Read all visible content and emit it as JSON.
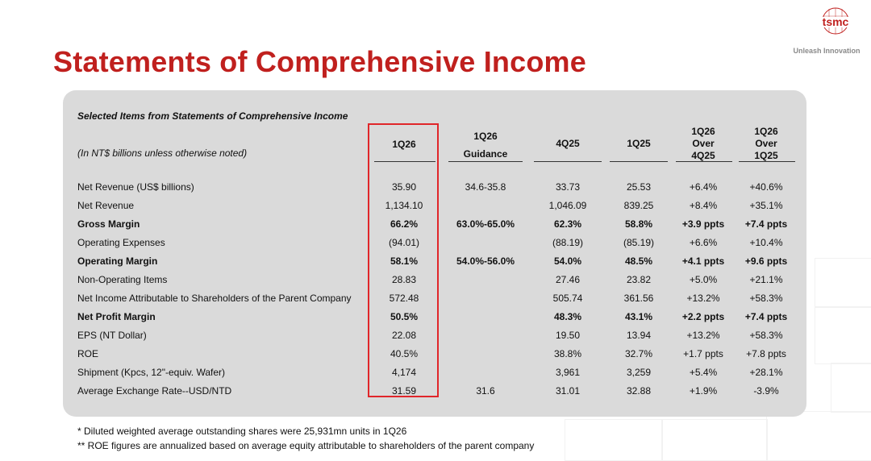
{
  "slide": {
    "title": "Statements of Comprehensive Income",
    "brand": {
      "logo_text": "tsmc",
      "tagline": "Unleash Innovation",
      "accent": "#c0201e"
    }
  },
  "table": {
    "caption": "Selected Items from Statements of Comprehensive Income",
    "unit_note": "(In NT$ billions unless otherwise noted)",
    "columns": [
      {
        "line1": "",
        "line2": "1Q26",
        "line3": ""
      },
      {
        "line1": "1Q26",
        "line2": "",
        "line3": "Guidance"
      },
      {
        "line1": "",
        "line2": "4Q25",
        "line3": ""
      },
      {
        "line1": "",
        "line2": "1Q25",
        "line3": ""
      },
      {
        "line1": "1Q26",
        "line2": "Over",
        "line3": "4Q25"
      },
      {
        "line1": "1Q26",
        "line2": "Over",
        "line3": "1Q25"
      }
    ],
    "highlight_color": "#e0262a",
    "rows": [
      {
        "label": "Net Revenue (US$ billions)",
        "bold": false,
        "values": [
          "35.90",
          "34.6-35.8",
          "33.73",
          "25.53",
          "+6.4%",
          "+40.6%"
        ]
      },
      {
        "label": "Net Revenue",
        "bold": false,
        "values": [
          "1,134.10",
          "",
          "1,046.09",
          "839.25",
          "+8.4%",
          "+35.1%"
        ]
      },
      {
        "label": "Gross Margin",
        "bold": true,
        "values": [
          "66.2%",
          "63.0%-65.0%",
          "62.3%",
          "58.8%",
          "+3.9 ppts",
          "+7.4 ppts"
        ]
      },
      {
        "label": "Operating Expenses",
        "bold": false,
        "values": [
          "(94.01)",
          "",
          "(88.19)",
          "(85.19)",
          "+6.6%",
          "+10.4%"
        ]
      },
      {
        "label": "Operating Margin",
        "bold": true,
        "values": [
          "58.1%",
          "54.0%-56.0%",
          "54.0%",
          "48.5%",
          "+4.1 ppts",
          "+9.6 ppts"
        ]
      },
      {
        "label": "Non-Operating Items",
        "bold": false,
        "values": [
          "28.83",
          "",
          "27.46",
          "23.82",
          "+5.0%",
          "+21.1%"
        ]
      },
      {
        "label": "Net Income Attributable to Shareholders of the Parent Company",
        "bold": false,
        "values": [
          "572.48",
          "",
          "505.74",
          "361.56",
          "+13.2%",
          "+58.3%"
        ]
      },
      {
        "label": "Net Profit Margin",
        "bold": true,
        "values": [
          "50.5%",
          "",
          "48.3%",
          "43.1%",
          "+2.2 ppts",
          "+7.4 ppts"
        ]
      },
      {
        "label": "EPS (NT Dollar)",
        "bold": false,
        "values": [
          "22.08",
          "",
          "19.50",
          "13.94",
          "+13.2%",
          "+58.3%"
        ]
      },
      {
        "label": "ROE",
        "bold": false,
        "values": [
          "40.5%",
          "",
          "38.8%",
          "32.7%",
          "+1.7 ppts",
          "+7.8 ppts"
        ]
      },
      {
        "label": "Shipment (Kpcs, 12\"-equiv. Wafer)",
        "bold": false,
        "values": [
          "4,174",
          "",
          "3,961",
          "3,259",
          "+5.4%",
          "+28.1%"
        ]
      },
      {
        "label": "Average Exchange Rate--USD/NTD",
        "bold": false,
        "values": [
          "31.59",
          "31.6",
          "31.01",
          "32.88",
          "+1.9%",
          "-3.9%"
        ]
      }
    ]
  },
  "footnotes": [
    "*     Diluted weighted average outstanding shares were 25,931mn units in 1Q26",
    "**  ROE figures are annualized based on average equity attributable to shareholders of the parent company"
  ]
}
